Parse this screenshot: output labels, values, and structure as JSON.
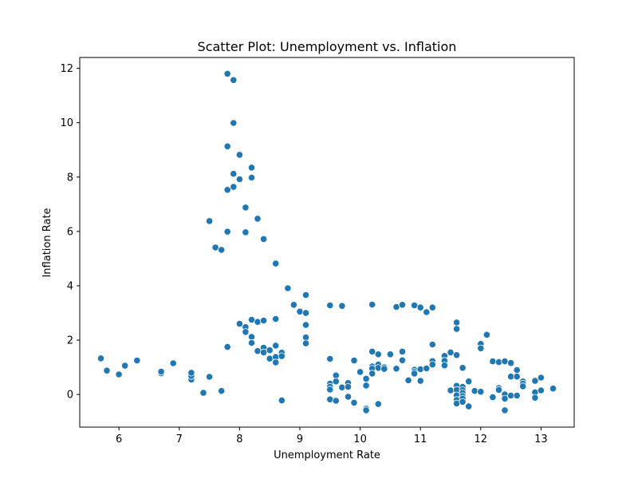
{
  "chart_data": {
    "type": "scatter",
    "title": "Scatter Plot: Unemployment vs. Inflation",
    "xlabel": "Unemployment Rate",
    "ylabel": "Inflation Rate",
    "xlim": [
      5.35,
      13.55
    ],
    "ylim": [
      -1.2,
      12.4
    ],
    "xticks": [
      6,
      7,
      8,
      9,
      10,
      11,
      12,
      13
    ],
    "yticks": [
      0,
      2,
      4,
      6,
      8,
      10,
      12
    ],
    "grid": false,
    "legend": "none",
    "point_color": "#1f77b4",
    "points": [
      [
        5.7,
        1.33
      ],
      [
        5.8,
        0.88
      ],
      [
        6.0,
        0.74
      ],
      [
        6.1,
        1.06
      ],
      [
        6.3,
        1.25
      ],
      [
        6.7,
        0.78
      ],
      [
        6.7,
        0.84
      ],
      [
        6.9,
        1.15
      ],
      [
        7.2,
        0.55
      ],
      [
        7.2,
        0.68
      ],
      [
        7.2,
        0.8
      ],
      [
        7.4,
        0.06
      ],
      [
        7.5,
        0.65
      ],
      [
        7.5,
        6.38
      ],
      [
        7.6,
        5.41
      ],
      [
        7.7,
        5.32
      ],
      [
        7.7,
        0.13
      ],
      [
        7.8,
        7.53
      ],
      [
        7.8,
        9.13
      ],
      [
        7.8,
        11.8
      ],
      [
        7.8,
        5.99
      ],
      [
        7.8,
        1.75
      ],
      [
        7.9,
        11.57
      ],
      [
        7.9,
        9.99
      ],
      [
        7.9,
        8.12
      ],
      [
        7.9,
        7.64
      ],
      [
        8.0,
        8.82
      ],
      [
        8.0,
        7.92
      ],
      [
        8.0,
        2.6
      ],
      [
        8.1,
        6.88
      ],
      [
        8.1,
        5.97
      ],
      [
        8.1,
        2.48
      ],
      [
        8.1,
        2.3
      ],
      [
        8.2,
        8.35
      ],
      [
        8.2,
        7.98
      ],
      [
        8.2,
        2.75
      ],
      [
        8.2,
        2.12
      ],
      [
        8.2,
        1.9
      ],
      [
        8.3,
        6.47
      ],
      [
        8.3,
        2.67
      ],
      [
        8.3,
        1.6
      ],
      [
        8.4,
        5.72
      ],
      [
        8.4,
        2.72
      ],
      [
        8.4,
        1.72
      ],
      [
        8.4,
        1.55
      ],
      [
        8.5,
        1.63
      ],
      [
        8.5,
        1.32
      ],
      [
        8.6,
        4.82
      ],
      [
        8.6,
        2.78
      ],
      [
        8.6,
        1.8
      ],
      [
        8.6,
        1.38
      ],
      [
        8.6,
        1.18
      ],
      [
        8.7,
        1.54
      ],
      [
        8.7,
        1.41
      ],
      [
        8.7,
        -0.22
      ],
      [
        8.8,
        3.91
      ],
      [
        8.9,
        3.3
      ],
      [
        9.0,
        3.05
      ],
      [
        9.1,
        3.66
      ],
      [
        9.1,
        3.0
      ],
      [
        9.1,
        2.56
      ],
      [
        9.1,
        2.1
      ],
      [
        9.1,
        1.88
      ],
      [
        9.5,
        3.28
      ],
      [
        9.5,
        1.31
      ],
      [
        9.5,
        0.4
      ],
      [
        9.5,
        0.29
      ],
      [
        9.5,
        0.18
      ],
      [
        9.5,
        -0.18
      ],
      [
        9.6,
        0.7
      ],
      [
        9.6,
        0.48
      ],
      [
        9.6,
        -0.23
      ],
      [
        9.7,
        3.26
      ],
      [
        9.7,
        0.26
      ],
      [
        9.8,
        0.42
      ],
      [
        9.8,
        0.28
      ],
      [
        9.8,
        -0.08
      ],
      [
        9.9,
        1.25
      ],
      [
        9.9,
        -0.3
      ],
      [
        10.0,
        0.83
      ],
      [
        10.1,
        0.58
      ],
      [
        10.1,
        0.33
      ],
      [
        10.1,
        -0.52
      ],
      [
        10.1,
        -0.58
      ],
      [
        10.2,
        3.31
      ],
      [
        10.2,
        1.58
      ],
      [
        10.2,
        1.03
      ],
      [
        10.2,
        0.95
      ],
      [
        10.2,
        0.77
      ],
      [
        10.3,
        1.48
      ],
      [
        10.3,
        1.1
      ],
      [
        10.3,
        0.98
      ],
      [
        10.3,
        -0.35
      ],
      [
        10.4,
        1.0
      ],
      [
        10.4,
        0.94
      ],
      [
        10.5,
        1.48
      ],
      [
        10.6,
        3.22
      ],
      [
        10.6,
        0.95
      ],
      [
        10.7,
        3.3
      ],
      [
        10.7,
        1.58
      ],
      [
        10.7,
        1.26
      ],
      [
        10.8,
        0.52
      ],
      [
        10.9,
        3.28
      ],
      [
        10.9,
        0.91
      ],
      [
        10.9,
        0.84
      ],
      [
        10.9,
        0.77
      ],
      [
        11.0,
        3.2
      ],
      [
        11.0,
        0.93
      ],
      [
        11.0,
        0.5
      ],
      [
        11.1,
        3.03
      ],
      [
        11.1,
        0.96
      ],
      [
        11.2,
        3.2
      ],
      [
        11.2,
        1.84
      ],
      [
        11.2,
        1.23
      ],
      [
        11.2,
        1.1
      ],
      [
        11.4,
        1.42
      ],
      [
        11.4,
        1.24
      ],
      [
        11.4,
        1.07
      ],
      [
        11.5,
        1.55
      ],
      [
        11.5,
        0.15
      ],
      [
        11.6,
        2.65
      ],
      [
        11.6,
        2.41
      ],
      [
        11.6,
        1.45
      ],
      [
        11.6,
        0.32
      ],
      [
        11.6,
        0.17
      ],
      [
        11.6,
        -0.03
      ],
      [
        11.6,
        -0.2
      ],
      [
        11.6,
        -0.33
      ],
      [
        11.7,
        0.98
      ],
      [
        11.7,
        0.28
      ],
      [
        11.7,
        0.16
      ],
      [
        11.7,
        0.06
      ],
      [
        11.7,
        -0.06
      ],
      [
        11.7,
        -0.15
      ],
      [
        11.7,
        -0.27
      ],
      [
        11.8,
        0.48
      ],
      [
        11.8,
        -0.44
      ],
      [
        11.9,
        0.13
      ],
      [
        12.0,
        1.86
      ],
      [
        12.0,
        1.7
      ],
      [
        12.0,
        0.1
      ],
      [
        12.1,
        2.2
      ],
      [
        12.2,
        1.22
      ],
      [
        12.2,
        -0.1
      ],
      [
        12.3,
        1.19
      ],
      [
        12.3,
        0.24
      ],
      [
        12.3,
        0.17
      ],
      [
        12.4,
        1.22
      ],
      [
        12.4,
        0.0
      ],
      [
        12.4,
        -0.15
      ],
      [
        12.4,
        -0.58
      ],
      [
        12.5,
        1.16
      ],
      [
        12.5,
        0.66
      ],
      [
        12.5,
        -0.04
      ],
      [
        12.6,
        0.9
      ],
      [
        12.6,
        0.66
      ],
      [
        12.6,
        -0.04
      ],
      [
        12.7,
        0.48
      ],
      [
        12.7,
        0.4
      ],
      [
        12.7,
        0.3
      ],
      [
        12.9,
        0.5
      ],
      [
        12.9,
        0.08
      ],
      [
        12.9,
        -0.12
      ],
      [
        13.0,
        0.62
      ],
      [
        13.0,
        0.15
      ],
      [
        13.2,
        0.22
      ]
    ]
  }
}
